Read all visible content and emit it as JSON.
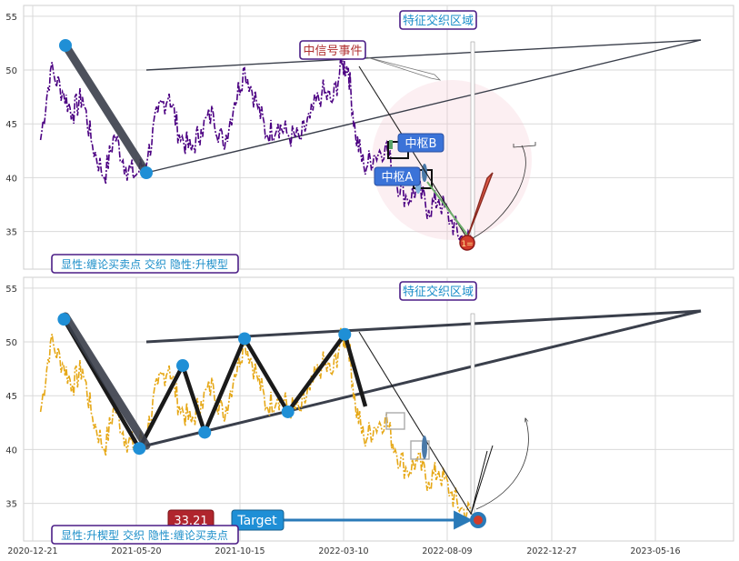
{
  "chart_data": [
    {
      "type": "line",
      "panel": "top",
      "ylim": [
        31.5,
        56
      ],
      "yticks": [
        35,
        40,
        45,
        50,
        55
      ],
      "grid": true,
      "price_color": "#4b0082",
      "series": [
        {
          "x": [
            "2021-01-01",
            "2021-01-15",
            "2021-02-01",
            "2021-02-15",
            "2021-03-01",
            "2021-03-15",
            "2021-04-01",
            "2021-04-15",
            "2021-05-01",
            "2021-05-15",
            "2021-06-01",
            "2021-06-15",
            "2021-07-01",
            "2021-07-15",
            "2021-08-01",
            "2021-08-15",
            "2021-09-01",
            "2021-09-15",
            "2021-10-01",
            "2021-10-15",
            "2021-11-01",
            "2021-11-15",
            "2021-12-01",
            "2021-12-15",
            "2022-01-01",
            "2022-01-15",
            "2022-02-01",
            "2022-02-15",
            "2022-03-01",
            "2022-03-10",
            "2022-03-20",
            "2022-04-01",
            "2022-04-15",
            "2022-05-01",
            "2022-05-15",
            "2022-06-01",
            "2022-06-15",
            "2022-07-01",
            "2022-07-15",
            "2022-08-01",
            "2022-08-15",
            "2022-09-01"
          ],
          "values": [
            43.5,
            50,
            48,
            46,
            47.5,
            43,
            40,
            44,
            41,
            40.2,
            42,
            46,
            47.8,
            44,
            42.5,
            44.5,
            46,
            43,
            47,
            50.2,
            47,
            44,
            45,
            44,
            43.5,
            45.5,
            48,
            47,
            50.5,
            50.2,
            44,
            41,
            42,
            43,
            40,
            38,
            39,
            37,
            38,
            36,
            34.5,
            34
          ]
        }
      ],
      "annotations": {
        "feature_zone": "特征交织区域",
        "signal_event": "中信号事件",
        "hub_b": "中枢B",
        "hub_a": "中枢A",
        "legend": "显性:缠论买卖点 交织 隐性:升楔型",
        "marker": "1="
      }
    },
    {
      "type": "line",
      "panel": "bottom",
      "ylim": [
        31.5,
        56
      ],
      "yticks": [
        35,
        40,
        45,
        50,
        55
      ],
      "grid": true,
      "price_color": "#e6a817",
      "series": [
        {
          "x": [
            "2021-01-01",
            "2021-01-15",
            "2021-02-01",
            "2021-02-15",
            "2021-03-01",
            "2021-03-15",
            "2021-04-01",
            "2021-04-15",
            "2021-05-01",
            "2021-05-15",
            "2021-06-01",
            "2021-06-15",
            "2021-07-01",
            "2021-07-15",
            "2021-08-01",
            "2021-08-15",
            "2021-09-01",
            "2021-09-15",
            "2021-10-01",
            "2021-10-15",
            "2021-11-01",
            "2021-11-15",
            "2021-12-01",
            "2021-12-15",
            "2022-01-01",
            "2022-01-15",
            "2022-02-01",
            "2022-02-15",
            "2022-03-01",
            "2022-03-10",
            "2022-03-20",
            "2022-04-01",
            "2022-04-15",
            "2022-05-01",
            "2022-05-15",
            "2022-06-01",
            "2022-06-15",
            "2022-07-01",
            "2022-07-15",
            "2022-08-01",
            "2022-08-15",
            "2022-09-01"
          ],
          "values": [
            43.5,
            50,
            48,
            46,
            47.5,
            43,
            40,
            44,
            41,
            40.2,
            42,
            46,
            47.8,
            44,
            42.5,
            44.5,
            46,
            43,
            47,
            50.2,
            47,
            44,
            45,
            44,
            43.5,
            45.5,
            48,
            47,
            50.5,
            50.2,
            44,
            41,
            42,
            43,
            40,
            38,
            39,
            37,
            38,
            36,
            34.5,
            34
          ]
        }
      ],
      "zigzag": {
        "dates": [
          "2021-02-03",
          "2021-05-20",
          "2021-07-20",
          "2021-08-20",
          "2021-10-15",
          "2021-12-15",
          "2022-03-05"
        ],
        "values": [
          52.1,
          40.1,
          47.8,
          41.6,
          50.3,
          43.5,
          50.7
        ]
      },
      "annotations": {
        "feature_zone": "特征交织区域",
        "legend": "显性:升楔型 交织 隐性:缠论买卖点",
        "price_label": "33.21",
        "target_label": "Target"
      }
    }
  ],
  "x_axis": {
    "ticks": [
      "2020-12-21",
      "2021-05-20",
      "2021-10-15",
      "2022-03-10",
      "2022-08-09",
      "2022-12-27",
      "2023-05-16"
    ]
  }
}
